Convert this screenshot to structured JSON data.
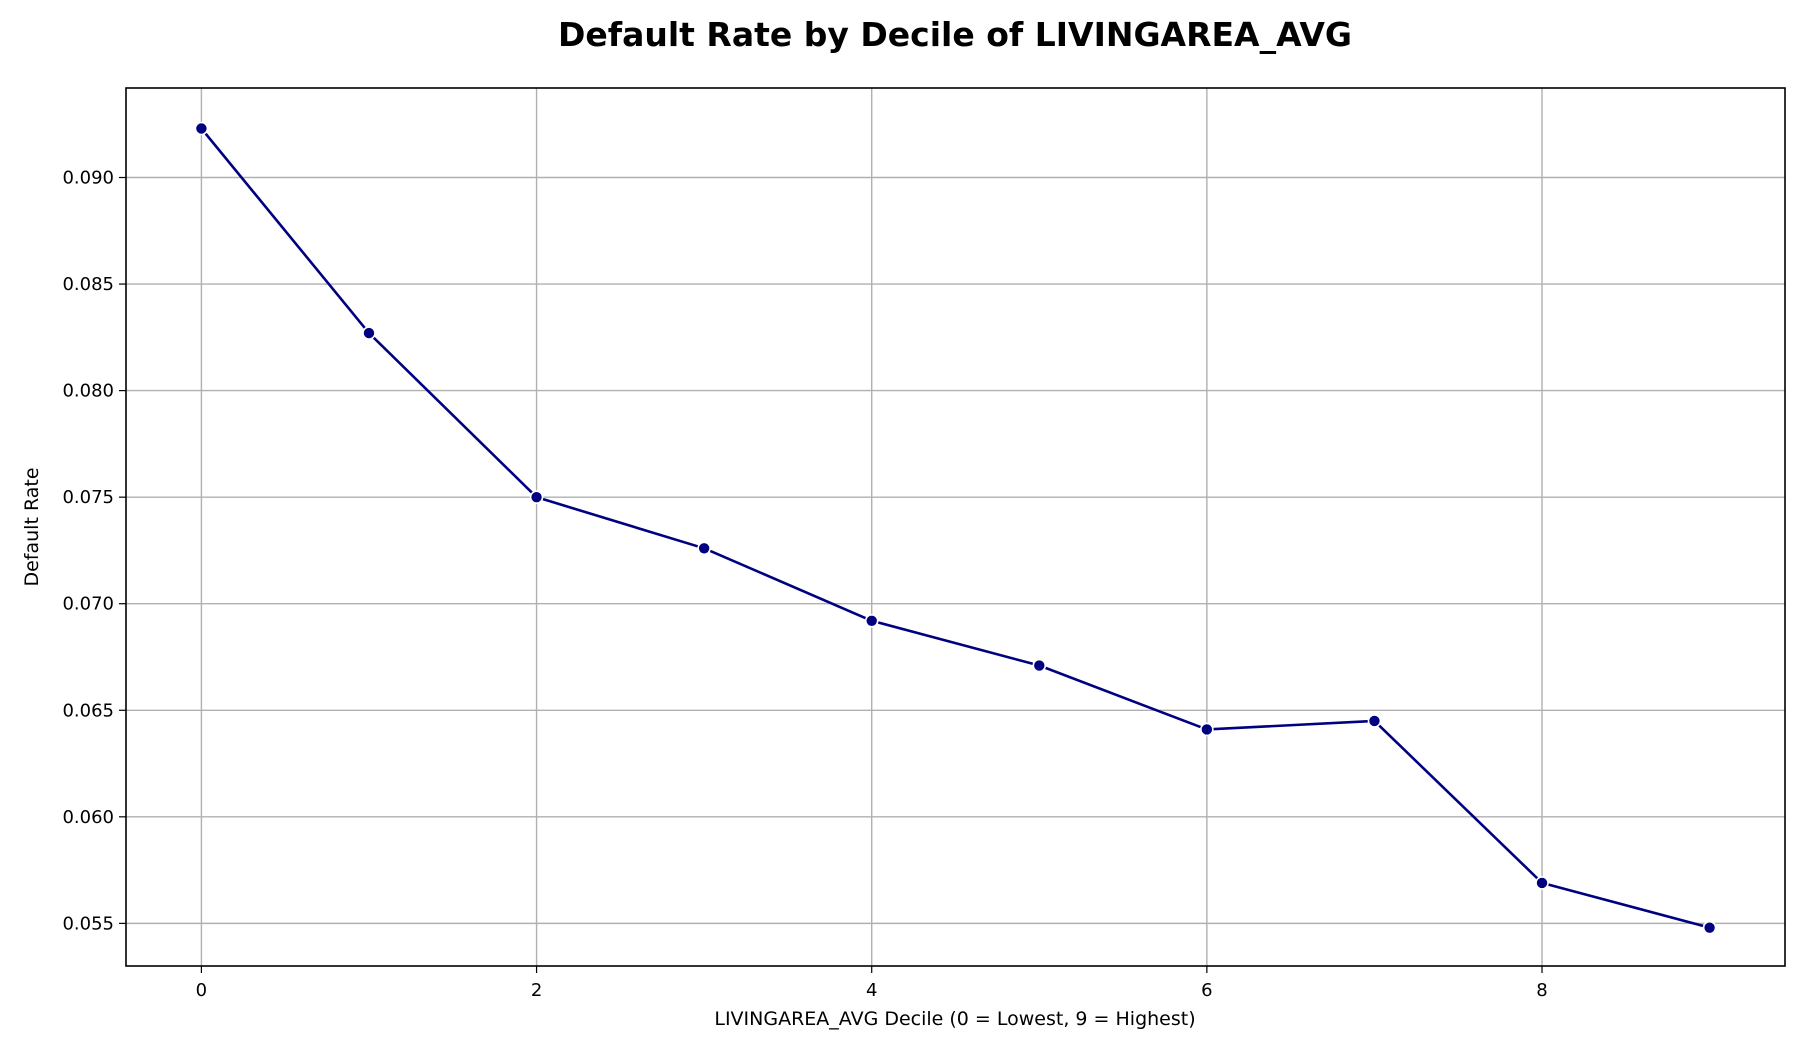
{
  "chart_data": {
    "type": "line",
    "title": "Default Rate by Decile of LIVINGAREA_AVG",
    "xlabel": "LIVINGAREA_AVG Decile (0 = Lowest, 9 = Highest)",
    "ylabel": "Default Rate",
    "x": [
      0,
      1,
      2,
      3,
      4,
      5,
      6,
      7,
      8,
      9
    ],
    "series": [
      {
        "values": [
          0.0923,
          0.0827,
          0.075,
          0.0726,
          0.0692,
          0.0671,
          0.0641,
          0.0645,
          0.0569,
          0.0548
        ]
      }
    ],
    "xlim": [
      -0.45,
      9.45
    ],
    "ylim": [
      0.053,
      0.0942
    ],
    "xticks": [
      0,
      2,
      4,
      6,
      8
    ],
    "xtick_labels": [
      "0",
      "2",
      "4",
      "6",
      "8"
    ],
    "yticks": [
      0.055,
      0.06,
      0.065,
      0.07,
      0.075,
      0.08,
      0.085,
      0.09
    ],
    "ytick_labels": [
      "0.055",
      "0.060",
      "0.065",
      "0.070",
      "0.075",
      "0.080",
      "0.085",
      "0.090"
    ],
    "grid": true,
    "line_color": "#000080",
    "marker": "circle",
    "marker_edge_color": "#ffffff"
  }
}
